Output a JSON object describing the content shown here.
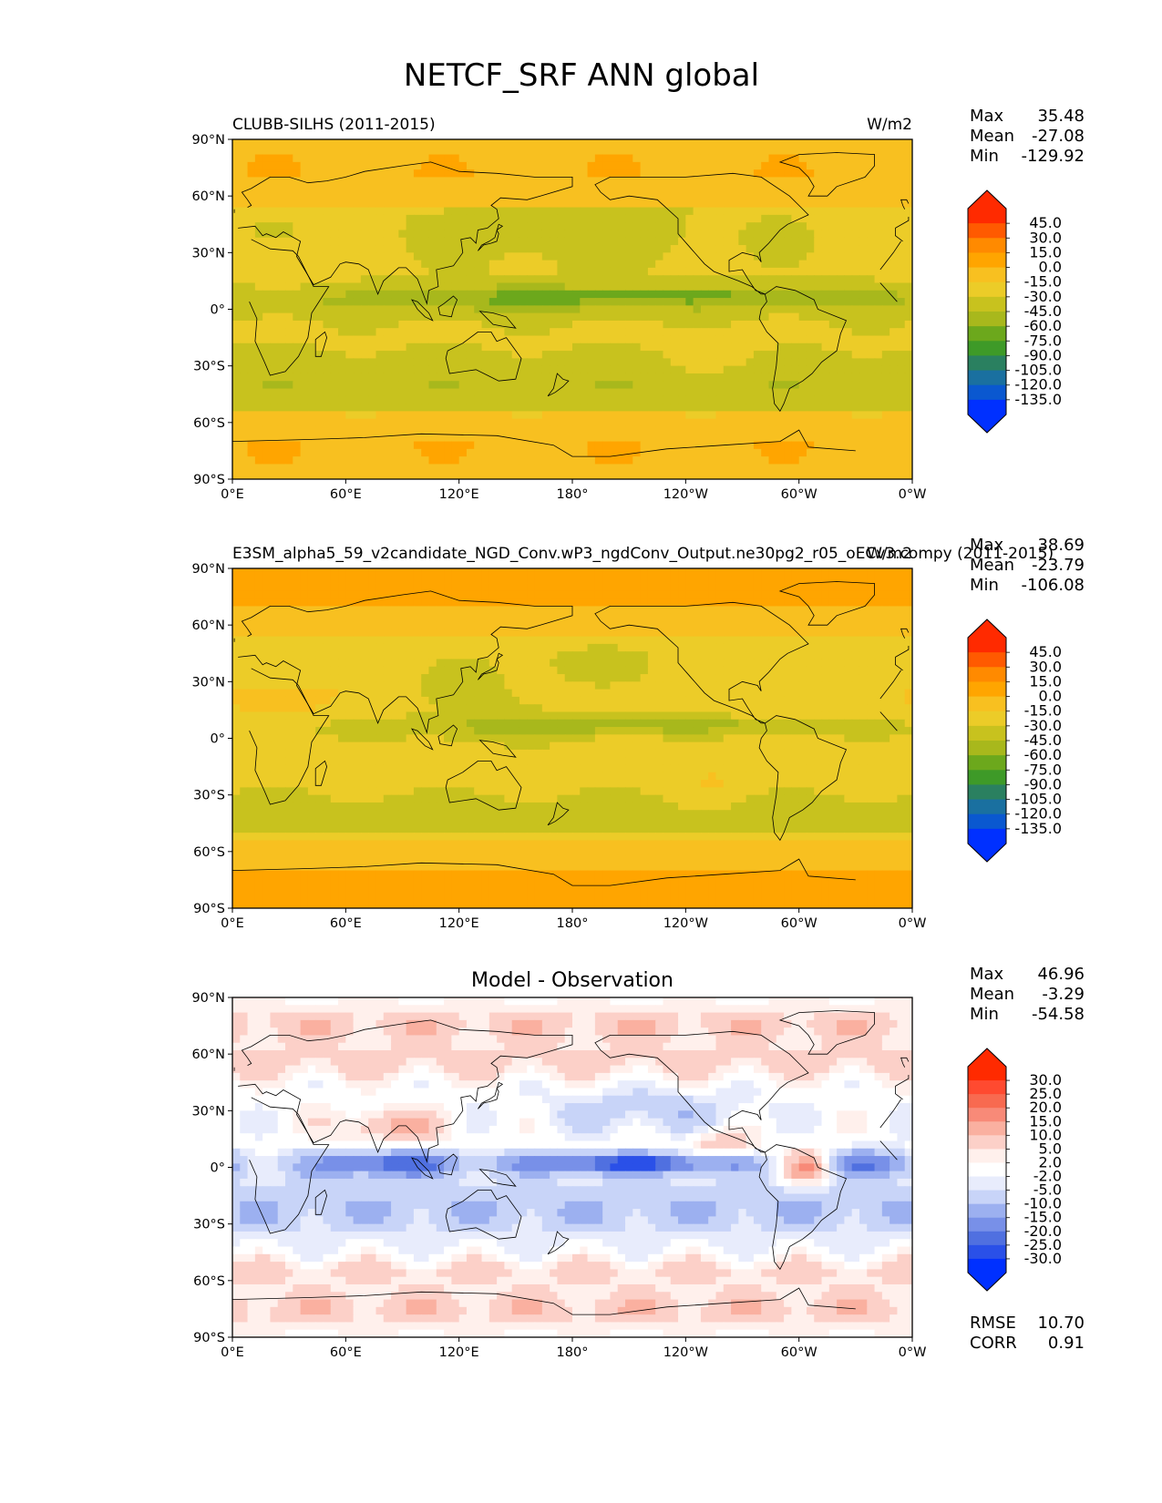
{
  "title": "NETCF_SRF ANN global",
  "lat_ticks": [
    "90°N",
    "60°N",
    "30°N",
    "0°",
    "30°S",
    "60°S",
    "90°S"
  ],
  "lon_ticks": [
    "0°E",
    "60°E",
    "120°E",
    "180°",
    "120°W",
    "60°W",
    "0°W"
  ],
  "panels": [
    {
      "left_title": "CLUBB-SILHS (2011-2015)",
      "center_title": "",
      "right_title": "W/m2",
      "stats": [
        {
          "label": "Max",
          "value": "35.48"
        },
        {
          "label": "Mean",
          "value": "-27.08"
        },
        {
          "label": "Min",
          "value": "-129.92"
        }
      ],
      "colorbar": {
        "labels": [
          "45.0",
          "30.0",
          "15.0",
          "0.0",
          "-15.0",
          "-30.0",
          "-45.0",
          "-60.0",
          "-75.0",
          "-90.0",
          "-105.0",
          "-120.0",
          "-135.0"
        ],
        "colors": [
          "#ff2a00",
          "#ff5a00",
          "#ff8a00",
          "#ffa500",
          "#f8c020",
          "#eccc28",
          "#c8c21e",
          "#a8b81c",
          "#6ca81c",
          "#3e9a28",
          "#2a8060",
          "#1a70a0",
          "#0a58d0",
          "#0030ff"
        ],
        "top_color": "#ff2a00",
        "bottom_color": "#0030ff"
      },
      "map_theme": "field_a"
    },
    {
      "left_title": "E3SM_alpha5_59_v2candidate_NGD_Conv.wP3_ngdConv_Output.ne30pg2_r05_oECv3.compy (2011-2015)",
      "center_title": "",
      "right_title": "W/m2",
      "stats": [
        {
          "label": "Max",
          "value": "38.69"
        },
        {
          "label": "Mean",
          "value": "-23.79"
        },
        {
          "label": "Min",
          "value": "-106.08"
        }
      ],
      "colorbar": {
        "labels": [
          "45.0",
          "30.0",
          "15.0",
          "0.0",
          "-15.0",
          "-30.0",
          "-45.0",
          "-60.0",
          "-75.0",
          "-90.0",
          "-105.0",
          "-120.0",
          "-135.0"
        ],
        "colors": [
          "#ff2a00",
          "#ff5a00",
          "#ff8a00",
          "#ffa500",
          "#f8c020",
          "#eccc28",
          "#c8c21e",
          "#a8b81c",
          "#6ca81c",
          "#3e9a28",
          "#2a8060",
          "#1a70a0",
          "#0a58d0",
          "#0030ff"
        ],
        "top_color": "#ff2a00",
        "bottom_color": "#0030ff"
      },
      "map_theme": "field_b"
    },
    {
      "left_title": "",
      "center_title": "Model - Observation",
      "right_title": "",
      "stats": [
        {
          "label": "Max",
          "value": "46.96"
        },
        {
          "label": "Mean",
          "value": "-3.29"
        },
        {
          "label": "Min",
          "value": "-54.58"
        }
      ],
      "extra_stats": [
        {
          "label": "RMSE",
          "value": "10.70"
        },
        {
          "label": "CORR",
          "value": "0.91"
        }
      ],
      "colorbar": {
        "labels": [
          "30.0",
          "25.0",
          "20.0",
          "15.0",
          "10.0",
          "5.0",
          "2.0",
          "-2.0",
          "-5.0",
          "-10.0",
          "-15.0",
          "-20.0",
          "-25.0",
          "-30.0"
        ],
        "colors": [
          "#ff2a00",
          "#ff4a30",
          "#f86a50",
          "#f88a78",
          "#fab0a0",
          "#fcd0c8",
          "#fff0ec",
          "#ffffff",
          "#e8ecfc",
          "#c8d4f8",
          "#9cb0f0",
          "#7890e8",
          "#5070e0",
          "#2a50e8",
          "#0030ff"
        ],
        "top_color": "#ff2a00",
        "bottom_color": "#0030ff"
      },
      "map_theme": "diff"
    }
  ]
}
